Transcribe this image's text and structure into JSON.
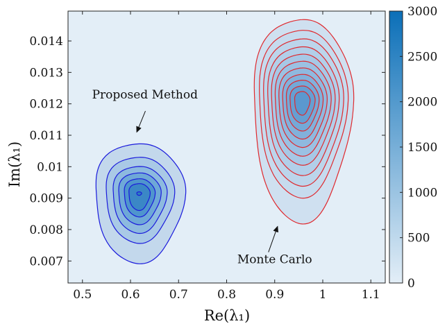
{
  "chart_data": {
    "type": "contour",
    "xlabel": "Re(λ₁)",
    "ylabel": "Im(λ₁)",
    "xlim": [
      0.47,
      1.13
    ],
    "ylim": [
      0.0063,
      0.01495
    ],
    "xticks": [
      0.5,
      0.6,
      0.7,
      0.8,
      0.9,
      1,
      1.1
    ],
    "xtick_labels": [
      "0.5",
      "0.6",
      "0.7",
      "0.8",
      "0.9",
      "1",
      "1.1"
    ],
    "yticks": [
      0.007,
      0.008,
      0.009,
      0.01,
      0.011,
      0.012,
      0.013,
      0.014
    ],
    "ytick_labels": [
      "0.007",
      "0.008",
      "0.009",
      "0.01",
      "0.011",
      "0.012",
      "0.013",
      "0.014"
    ],
    "grid": false,
    "colorbar": {
      "range": [
        0,
        3000
      ],
      "ticks": [
        0,
        500,
        1000,
        1500,
        2000,
        2500,
        3000
      ],
      "tick_labels": [
        "0",
        "500",
        "1000",
        "1500",
        "2000",
        "2500",
        "3000"
      ],
      "color_low": "#e3eef7",
      "color_high": "#0b6fb8"
    },
    "series": [
      {
        "name": "Proposed Method",
        "line_color": "#1a1adc",
        "center": [
          0.618,
          0.00915
        ],
        "levels": [
          {
            "rx": 0.093,
            "ry_up": 0.00162,
            "ry_down": 0.00218,
            "fill": "#c3d8ec"
          },
          {
            "rx": 0.071,
            "ry_up": 0.00118,
            "ry_down": 0.00155,
            "fill": "#a9c9e6"
          },
          {
            "rx": 0.056,
            "ry_up": 0.00088,
            "ry_down": 0.00124,
            "fill": "#8dbadf"
          },
          {
            "rx": 0.044,
            "ry_up": 0.00067,
            "ry_down": 0.00097,
            "fill": "#6ea8d7"
          },
          {
            "rx": 0.032,
            "ry_up": 0.00048,
            "ry_down": 0.00073,
            "fill": "#4f95cd"
          },
          {
            "rx": 0.022,
            "ry_up": 0.00032,
            "ry_down": 0.00053,
            "fill": "#3b87c6"
          },
          {
            "rx": 0.005,
            "ry_up": 5e-05,
            "ry_down": 6e-05,
            "fill": "#2c7dc1"
          }
        ]
      },
      {
        "name": "Monte Carlo",
        "line_color": "#e0282d",
        "center": [
          0.957,
          0.0121
        ],
        "levels": [
          {
            "rx": 0.103,
            "ry_up": 0.00265,
            "ry_down": 0.00382,
            "fill": "#cfe0f0"
          },
          {
            "rx": 0.092,
            "ry_up": 0.0023,
            "ry_down": 0.00302,
            "fill": "#c6dbee"
          },
          {
            "rx": 0.083,
            "ry_up": 0.00202,
            "ry_down": 0.00265,
            "fill": "#bcd5eb"
          },
          {
            "rx": 0.074,
            "ry_up": 0.00176,
            "ry_down": 0.00232,
            "fill": "#b2cfe9"
          },
          {
            "rx": 0.066,
            "ry_up": 0.00152,
            "ry_down": 0.002,
            "fill": "#a7c8e6"
          },
          {
            "rx": 0.058,
            "ry_up": 0.00129,
            "ry_down": 0.00172,
            "fill": "#9bc1e3"
          },
          {
            "rx": 0.05,
            "ry_up": 0.00107,
            "ry_down": 0.00145,
            "fill": "#8fb9df"
          },
          {
            "rx": 0.042,
            "ry_up": 0.00086,
            "ry_down": 0.00119,
            "fill": "#82b1db"
          },
          {
            "rx": 0.034,
            "ry_up": 0.00067,
            "ry_down": 0.00094,
            "fill": "#74a9d7"
          },
          {
            "rx": 0.026,
            "ry_up": 0.00048,
            "ry_down": 0.0007,
            "fill": "#669fd2"
          },
          {
            "rx": 0.016,
            "ry_up": 0.0003,
            "ry_down": 0.00045,
            "fill": "#5b98cf"
          }
        ]
      }
    ],
    "annotations": [
      {
        "text": "Proposed Method",
        "text_at": [
          0.63,
          0.01217
        ],
        "arrow_from": [
          0.631,
          0.01177
        ],
        "arrow_to": [
          0.613,
          0.0111
        ]
      },
      {
        "text": "Monte Carlo",
        "text_at": [
          0.9,
          0.00693
        ],
        "arrow_from": [
          0.887,
          0.00728
        ],
        "arrow_to": [
          0.906,
          0.0081
        ]
      }
    ]
  }
}
